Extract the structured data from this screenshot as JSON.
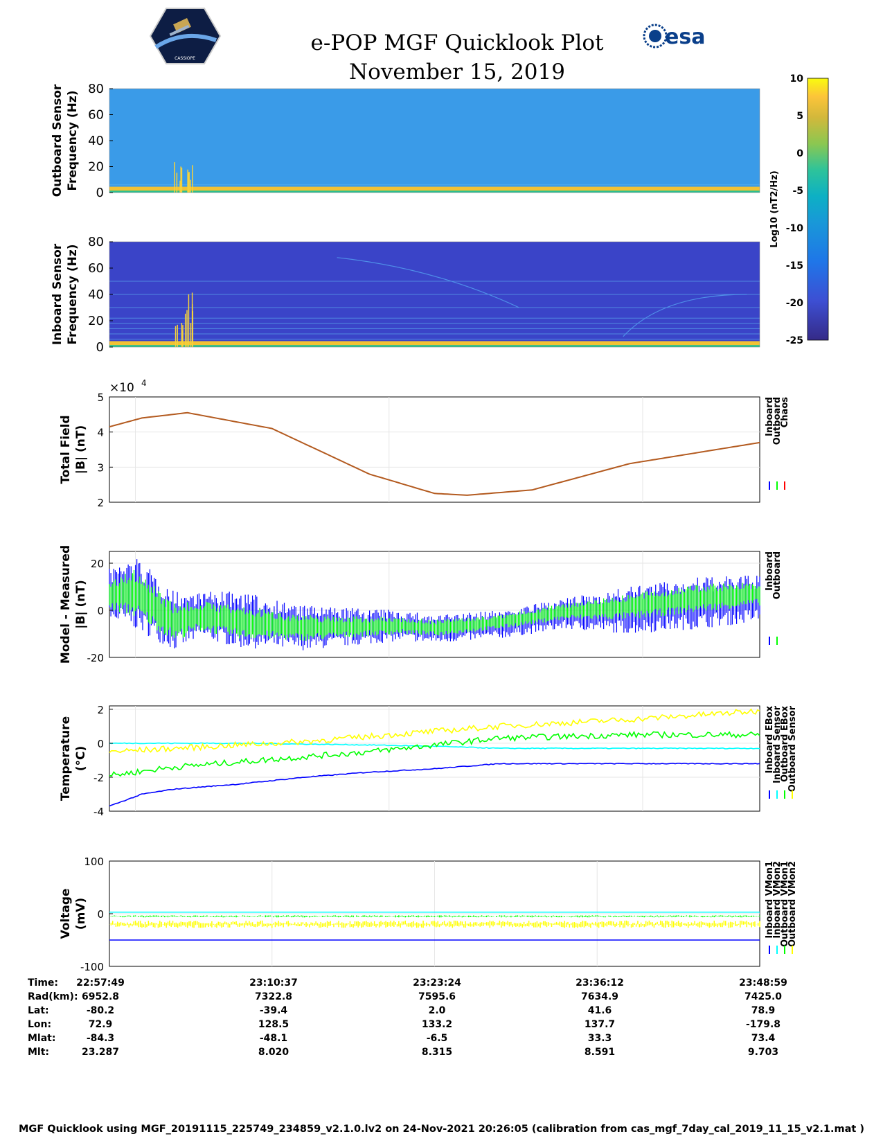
{
  "header": {
    "title": "e-POP MGF Quicklook Plot",
    "date": "November 15, 2019",
    "esa_logo_text": "esa",
    "cassiope_logo_text": "CASSIOPE"
  },
  "colorbar": {
    "label": "Log10 (nT2/Hz)",
    "ticks": [
      10,
      5,
      0,
      -5,
      -10,
      -15,
      -20,
      -25
    ],
    "range": [
      -25,
      10
    ]
  },
  "chart_data": [
    {
      "type": "heatmap",
      "ylabel": [
        "Outboard Sensor",
        "Frequency (Hz)"
      ],
      "ylim": [
        0,
        80
      ],
      "yticks": [
        0,
        20,
        40,
        60,
        80
      ],
      "background_color": "#3a9be8"
    },
    {
      "type": "heatmap",
      "ylabel": [
        "Inboard Sensor",
        "Frequency (Hz)"
      ],
      "ylim": [
        0,
        80
      ],
      "yticks": [
        0,
        20,
        40,
        60,
        80
      ],
      "background_color": "#3a44c8"
    },
    {
      "type": "line",
      "ylabel": [
        "Total Field",
        "|B| (nT)"
      ],
      "yscale_label": "×10",
      "yscale_exp": "4",
      "ylim": [
        2,
        5
      ],
      "yticks": [
        2,
        3,
        4,
        5
      ],
      "grid": true,
      "legend": [
        "Inboard",
        "Outboard",
        "Chaos"
      ],
      "legend_colors": [
        "#0000ff",
        "#00ff00",
        "#ff0000"
      ],
      "series": [
        {
          "name": "Chaos",
          "color": "#b35a1f",
          "x": [
            0,
            0.05,
            0.12,
            0.25,
            0.4,
            0.5,
            0.55,
            0.65,
            0.8,
            1.0
          ],
          "values": [
            4.15,
            4.4,
            4.55,
            4.1,
            2.8,
            2.25,
            2.2,
            2.35,
            3.1,
            3.7
          ]
        }
      ]
    },
    {
      "type": "area",
      "ylabel": [
        "Model - Measured",
        "|B| (nT)"
      ],
      "ylim": [
        -20,
        25
      ],
      "yticks": [
        -20,
        0,
        20
      ],
      "grid": true,
      "legend": [
        "Inboard",
        "Outboard"
      ],
      "legend_colors": [
        "#0000ff",
        "#00ff00"
      ],
      "series": [
        {
          "name": "Inboard",
          "color": "#0000ff",
          "x": [
            0,
            0.04,
            0.1,
            0.14,
            0.2,
            0.3,
            0.45,
            0.5,
            0.6,
            0.7,
            0.8,
            0.9,
            1.0
          ],
          "upper": [
            18,
            23,
            8,
            8,
            8,
            2,
            0,
            -2,
            0,
            5,
            10,
            14,
            15
          ],
          "lower": [
            -5,
            -8,
            -17,
            -12,
            -16,
            -17,
            -13,
            -14,
            -12,
            -8,
            -10,
            -8,
            -5
          ]
        },
        {
          "name": "Outboard",
          "color": "#00ff00",
          "x": [
            0,
            0.04,
            0.1,
            0.14,
            0.2,
            0.3,
            0.45,
            0.5,
            0.6,
            0.7,
            0.8,
            0.9,
            1.0
          ],
          "upper": [
            12,
            18,
            3,
            4,
            2,
            -2,
            -3,
            -4,
            -2,
            3,
            7,
            11,
            12
          ],
          "lower": [
            0,
            -3,
            -13,
            -9,
            -12,
            -13,
            -10,
            -11,
            -8,
            -4,
            -4,
            -1,
            2
          ]
        }
      ]
    },
    {
      "type": "line",
      "ylabel": [
        "Temperature",
        "(°C)"
      ],
      "ylim": [
        -4,
        2.2
      ],
      "yticks": [
        -4,
        -2,
        0,
        2
      ],
      "grid": true,
      "legend": [
        "Inboard EBox",
        "Inboard Sensor",
        "Outboard EBox",
        "Outboard Sensor"
      ],
      "legend_colors": [
        "#0000ff",
        "#00ffff",
        "#00ff00",
        "#ffff00"
      ],
      "series": [
        {
          "name": "Inboard EBox",
          "color": "#0000ff",
          "x": [
            0,
            0.05,
            0.1,
            0.2,
            0.3,
            0.4,
            0.5,
            0.6,
            1.0
          ],
          "values": [
            -3.7,
            -3.0,
            -2.7,
            -2.4,
            -2.0,
            -1.7,
            -1.5,
            -1.2,
            -1.2
          ]
        },
        {
          "name": "Inboard Sensor",
          "color": "#00ffff",
          "x": [
            0,
            0.2,
            0.4,
            0.52,
            0.6,
            1.0
          ],
          "values": [
            0.0,
            0.0,
            -0.1,
            -0.2,
            -0.3,
            -0.3
          ]
        },
        {
          "name": "Outboard EBox",
          "color": "#00ff00",
          "x": [
            0,
            0.1,
            0.2,
            0.3,
            0.4,
            0.5,
            0.6,
            0.8,
            1.0
          ],
          "values": [
            -1.9,
            -1.4,
            -1.1,
            -0.8,
            -0.5,
            -0.1,
            0.3,
            0.5,
            0.5
          ]
        },
        {
          "name": "Outboard Sensor",
          "color": "#ffff00",
          "x": [
            0,
            0.1,
            0.2,
            0.3,
            0.4,
            0.5,
            0.6,
            0.8,
            1.0
          ],
          "values": [
            -0.5,
            -0.3,
            -0.1,
            0.1,
            0.4,
            0.7,
            1.0,
            1.4,
            1.9
          ]
        }
      ]
    },
    {
      "type": "line",
      "ylabel": [
        "Voltage",
        "(mV)"
      ],
      "ylim": [
        -100,
        100
      ],
      "yticks": [
        -100,
        0,
        100
      ],
      "grid": true,
      "legend": [
        "Inboard VMon1",
        "Inboard VMon2",
        "Outboard VMon1",
        "Outboard VMon2"
      ],
      "legend_colors": [
        "#0000ff",
        "#00ffff",
        "#00ff00",
        "#ffff00"
      ],
      "series": [
        {
          "name": "Inboard VMon1",
          "color": "#0000ff",
          "x": [
            0,
            1
          ],
          "values": [
            -50,
            -50
          ]
        },
        {
          "name": "Inboard VMon2",
          "color": "#00ffff",
          "x": [
            0,
            1
          ],
          "values": [
            3,
            3
          ]
        },
        {
          "name": "Outboard VMon1",
          "color": "#00ff00",
          "x": [
            0,
            1
          ],
          "values": [
            -5,
            -5
          ]
        },
        {
          "name": "Outboard VMon2",
          "color": "#ffff00",
          "x": [
            0,
            1
          ],
          "values": [
            -20,
            -20
          ]
        }
      ]
    }
  ],
  "orbit_table": {
    "labels": [
      "Time:",
      "Rad(km):",
      "Lat:",
      "Lon:",
      "Mlat:",
      "Mlt:"
    ],
    "columns": [
      [
        "22:57:49",
        "6952.8",
        "-80.2",
        "72.9",
        "-84.3",
        "23.287"
      ],
      [
        "23:10:37",
        "7322.8",
        "-39.4",
        "128.5",
        "-48.1",
        "8.020"
      ],
      [
        "23:23:24",
        "7595.6",
        "2.0",
        "133.2",
        "-6.5",
        "8.315"
      ],
      [
        "23:36:12",
        "7634.9",
        "41.6",
        "137.7",
        "33.3",
        "8.591"
      ],
      [
        "23:48:59",
        "7425.0",
        "78.9",
        "-179.8",
        "73.4",
        "9.703"
      ]
    ]
  },
  "footer": "MGF Quicklook using MGF_20191115_225749_234859_v2.1.0.lv2 on 24-Nov-2021 20:26:05 (calibration from cas_mgf_7day_cal_2019_11_15_v2.1.mat )"
}
